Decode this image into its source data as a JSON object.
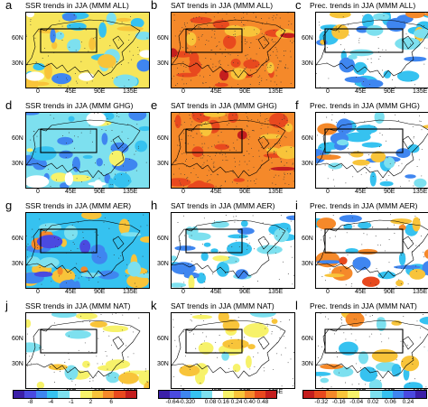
{
  "panels": [
    {
      "letter": "a",
      "title": "SSR trends in JJA (MMM ALL)",
      "kind": "ssr",
      "lat": [
        "30N",
        "60N"
      ],
      "lon": [
        "0",
        "45E",
        "90E",
        "135E"
      ]
    },
    {
      "letter": "b",
      "title": "SAT trends in JJA (MMM ALL)",
      "kind": "sat_all",
      "lat": [
        "30N",
        "60N"
      ],
      "lon": [
        "0",
        "45E",
        "90E",
        "135E"
      ]
    },
    {
      "letter": "c",
      "title": "Prec. trends in JJA (MMM ALL)",
      "kind": "pre",
      "lat": [
        "30N",
        "60N"
      ],
      "lon": [
        "0",
        "45E",
        "90E",
        "135E"
      ]
    },
    {
      "letter": "d",
      "title": "SSR trends in JJA (MMM GHG)",
      "kind": "ssr_ghg",
      "lat": [
        "30N",
        "60N"
      ],
      "lon": [
        "0",
        "45E",
        "90E",
        "135E"
      ]
    },
    {
      "letter": "e",
      "title": "SAT trends in JJA (MMM GHG)",
      "kind": "sat_ghg",
      "lat": [
        "30N",
        "60N"
      ],
      "lon": [
        "0",
        "45E",
        "90E",
        "135E"
      ]
    },
    {
      "letter": "f",
      "title": "Prec. trends in JJA (MMM GHG)",
      "kind": "pre",
      "lat": [
        "30N",
        "60N"
      ],
      "lon": [
        "0",
        "45E",
        "90E",
        "135E"
      ]
    },
    {
      "letter": "g",
      "title": "SSR trends in JJA (MMM AER)",
      "kind": "ssr_aer",
      "lat": [
        "30N",
        "60N"
      ],
      "lon": [
        "0",
        "45E",
        "90E",
        "135E"
      ]
    },
    {
      "letter": "h",
      "title": "SAT trends in JJA (MMM AER)",
      "kind": "sat_aer",
      "lat": [
        "30N",
        "60N"
      ],
      "lon": [
        "0",
        "45E",
        "90E",
        "135E"
      ]
    },
    {
      "letter": "i",
      "title": "Prec. trends in JJA (MMM AER)",
      "kind": "pre_aer",
      "lat": [
        "30N",
        "60N"
      ],
      "lon": [
        "0",
        "45E",
        "90E",
        "135E"
      ]
    },
    {
      "letter": "j",
      "title": "SSR trends in JJA (MMM NAT)",
      "kind": "ssr_nat",
      "lat": [
        "30N",
        "60N"
      ],
      "lon": [
        "0",
        "45E",
        "90E",
        "135E"
      ]
    },
    {
      "letter": "k",
      "title": "SAT trends in JJA (MMM NAT)",
      "kind": "sat_nat",
      "lat": [
        "30N",
        "60N"
      ],
      "lon": [
        "0",
        "45E",
        "90E",
        "135E"
      ]
    },
    {
      "letter": "l",
      "title": "Prec. trends in JJA (MMM NAT)",
      "kind": "pre_nat",
      "lat": [
        "30N",
        "60N"
      ],
      "lon": [
        "0",
        "45E",
        "90E",
        "135E"
      ]
    }
  ],
  "colorbars": [
    {
      "name": "ssr",
      "ticks": [
        "-8",
        "-4",
        "-1",
        "2",
        "6"
      ],
      "colors": [
        "#3b1fa8",
        "#4a4ae0",
        "#3f86f0",
        "#36c2f0",
        "#7de0ef",
        "#ffffff",
        "#f7f26a",
        "#f8c43a",
        "#f5892a",
        "#e8491e",
        "#c41e1e"
      ]
    },
    {
      "name": "sat",
      "ticks": [
        "-0.64",
        "-0.32",
        "0",
        "0.08",
        "0.16",
        "0.24",
        "0.40",
        "0.48"
      ],
      "colors": [
        "#3b1fa8",
        "#4a4ae0",
        "#3f86f0",
        "#36c2f0",
        "#7de0ef",
        "#ffffff",
        "#f7f26a",
        "#f8c43a",
        "#f5892a",
        "#e8491e",
        "#c41e1e"
      ]
    },
    {
      "name": "pre",
      "ticks": [
        "-0.32",
        "-0.16",
        "-0.04",
        "0.02",
        "0.06",
        "0.24"
      ],
      "colors": [
        "#c41e1e",
        "#e8491e",
        "#f5892a",
        "#f8c43a",
        "#f7f26a",
        "#ffffff",
        "#7de0ef",
        "#36c2f0",
        "#3f86f0",
        "#4a4ae0",
        "#3b1fa8"
      ]
    }
  ]
}
